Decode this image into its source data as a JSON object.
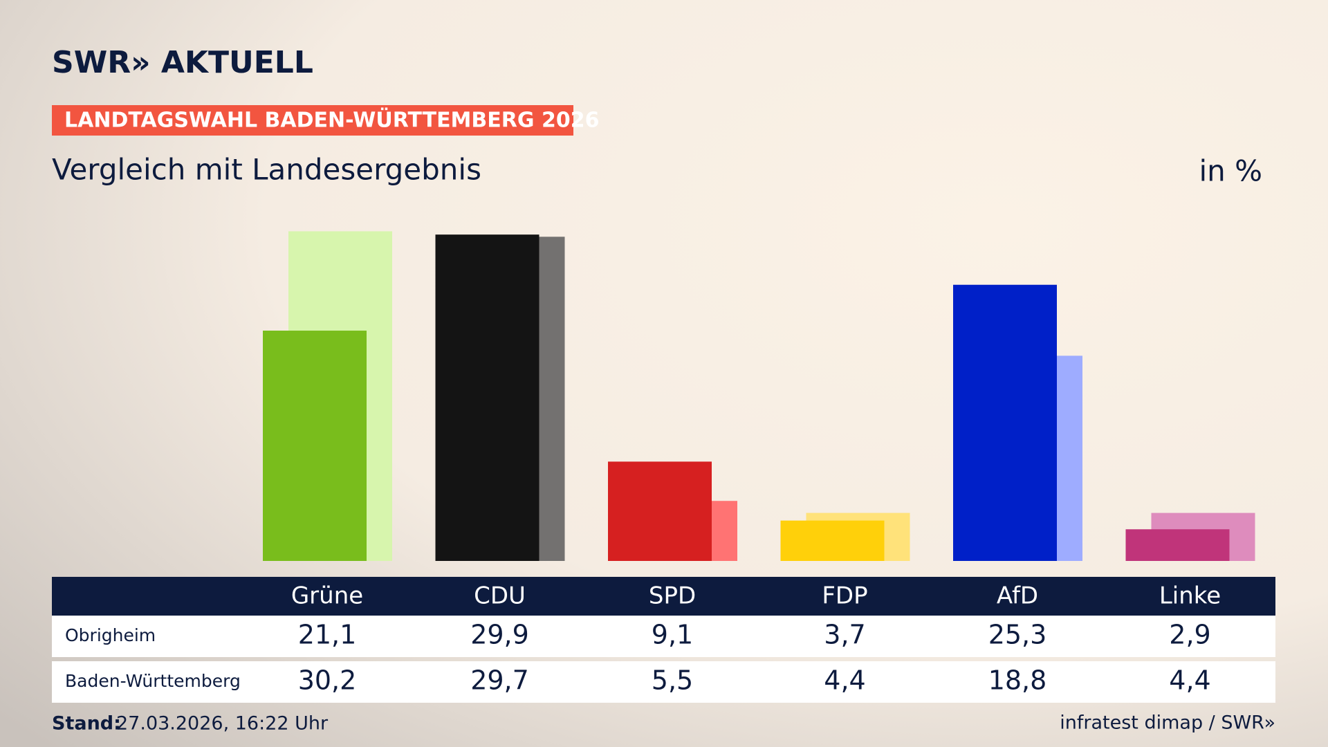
{
  "chart_data": {
    "type": "bar",
    "brand": "SWR» AKTUELL",
    "banner": "LANDTAGSWAHL BADEN-WÜRTTEMBERG 2026",
    "title": "Vergleich mit Landesergebnis",
    "unit": "in %",
    "categories": [
      "Grüne",
      "CDU",
      "SPD",
      "FDP",
      "AfD",
      "Linke"
    ],
    "series": [
      {
        "name": "Obrigheim",
        "colors": [
          "#79bd1c",
          "#141414",
          "#d62020",
          "#ffd00a",
          "#0020c8",
          "#c0347a"
        ],
        "values": [
          21.1,
          29.9,
          9.1,
          3.7,
          25.3,
          2.9
        ],
        "value_labels": [
          "21,1",
          "29,9",
          "9,1",
          "3,7",
          "25,3",
          "2,9"
        ]
      },
      {
        "name": "Baden-Württemberg",
        "colors": [
          "#d7f5ad",
          "#737170",
          "#ff7373",
          "#ffe27a",
          "#9eacff",
          "#de8cbd"
        ],
        "values": [
          30.2,
          29.7,
          5.5,
          4.4,
          18.8,
          4.4
        ],
        "value_labels": [
          "30,2",
          "29,7",
          "5,5",
          "4,4",
          "18,8",
          "4,4"
        ]
      }
    ],
    "ylim": [
      0,
      32
    ],
    "footer_label": "Stand:",
    "footer_date": "27.03.2026, 16:22 Uhr",
    "source": "infratest dimap / SWR»"
  }
}
